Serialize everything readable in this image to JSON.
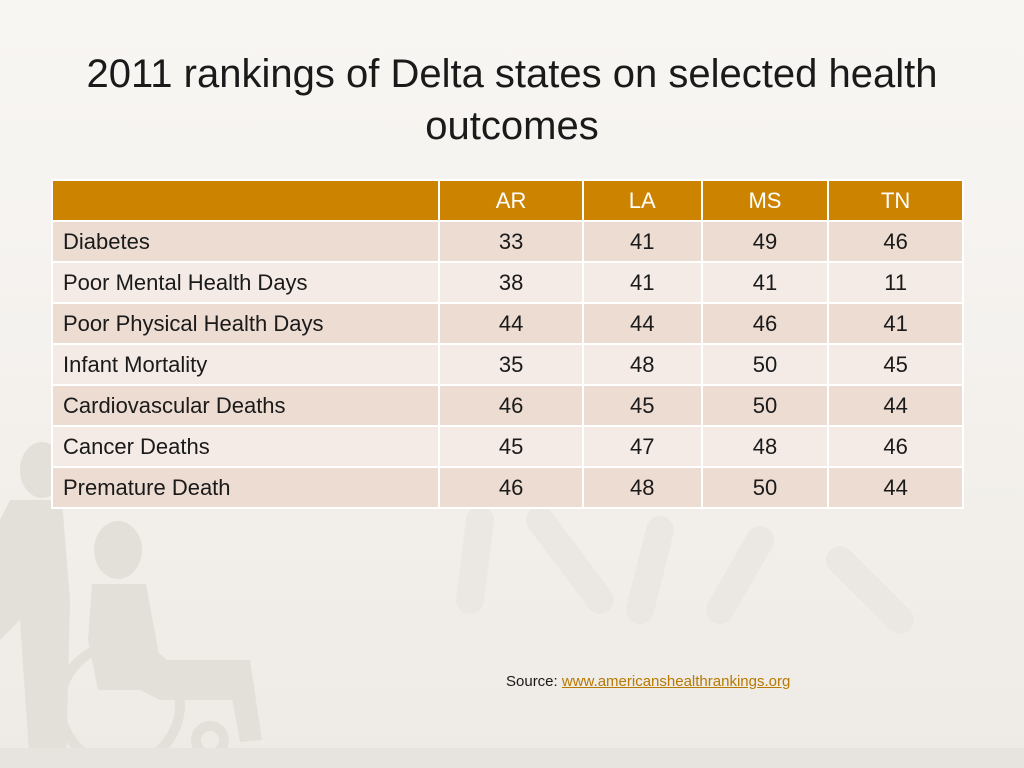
{
  "slide": {
    "title": "2011 rankings of Delta states on selected health outcomes",
    "source_label": "Source:",
    "source_link": "www.americanshealthrankings.org"
  },
  "chart_data": {
    "type": "table",
    "title": "2011 rankings of Delta states on selected health outcomes",
    "columns": [
      "AR",
      "LA",
      "MS",
      "TN"
    ],
    "rows": [
      {
        "label": "Diabetes",
        "values": [
          33,
          41,
          49,
          46
        ]
      },
      {
        "label": "Poor Mental Health Days",
        "values": [
          38,
          41,
          41,
          11
        ]
      },
      {
        "label": "Poor Physical Health Days",
        "values": [
          44,
          44,
          46,
          41
        ]
      },
      {
        "label": "Infant Mortality",
        "values": [
          35,
          48,
          50,
          45
        ]
      },
      {
        "label": "Cardiovascular Deaths",
        "values": [
          46,
          45,
          50,
          44
        ]
      },
      {
        "label": "Cancer Deaths",
        "values": [
          45,
          47,
          48,
          46
        ]
      },
      {
        "label": "Premature Death",
        "values": [
          46,
          48,
          50,
          44
        ]
      }
    ]
  },
  "colors": {
    "header_bg": "#cc8400",
    "row_odd": "#ecdcd2",
    "row_even": "#f4ebe7",
    "link": "#b77900"
  }
}
